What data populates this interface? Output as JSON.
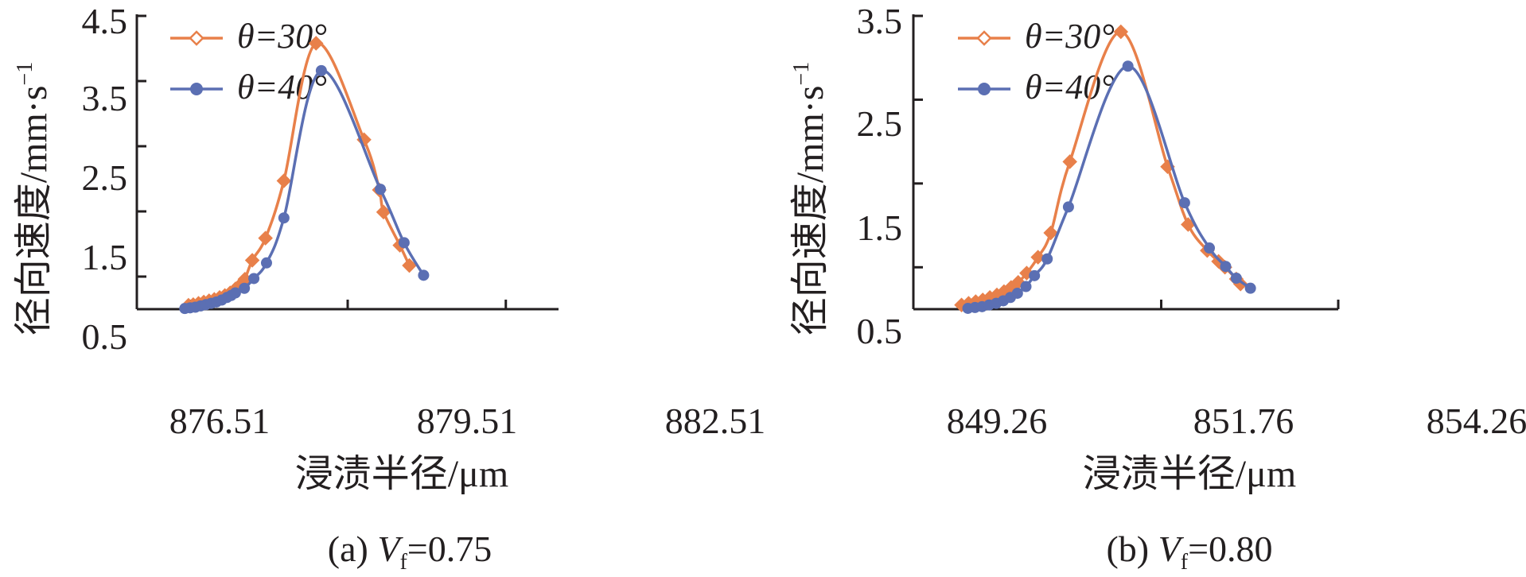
{
  "colors": {
    "theta30": "#e8804a",
    "theta40": "#5b6fb3",
    "axis": "#231f20"
  },
  "legend_labels": {
    "theta30": "θ=30°",
    "theta40": "θ=40°"
  },
  "chart_data": [
    {
      "type": "line",
      "caption": "(a) Vf=0.75",
      "caption_parts": {
        "prefix": "(a) ",
        "var": "V",
        "sub": "f",
        "suffix": "=0.75"
      },
      "xlabel": "浸渍半径/μm",
      "ylabel": "径向速度/mm·s⁻¹",
      "ylabel_parts": {
        "main": "径向速度/mm",
        "dot": "·",
        "s": "s",
        "sup": "−1"
      },
      "xlim": [
        875.51,
        883.51
      ],
      "ylim": [
        0,
        4.5
      ],
      "xticks": [
        "876.51",
        "879.51",
        "882.51"
      ],
      "xtick_values": [
        876.51,
        879.51,
        882.51
      ],
      "yticks": [
        "0.5",
        "1.5",
        "2.5",
        "3.5",
        "4.5"
      ],
      "ytick_values": [
        0.5,
        1.5,
        2.5,
        3.5,
        4.5
      ],
      "legend": "top-left",
      "grid": false,
      "series": [
        {
          "name": "θ=30°",
          "marker": "diamond",
          "points": [
            [
              876.49,
              0.06
            ],
            [
              876.58,
              0.07
            ],
            [
              876.68,
              0.09
            ],
            [
              876.78,
              0.11
            ],
            [
              876.88,
              0.13
            ],
            [
              876.98,
              0.15
            ],
            [
              877.08,
              0.18
            ],
            [
              877.18,
              0.21
            ],
            [
              877.28,
              0.25
            ],
            [
              877.38,
              0.31
            ],
            [
              877.48,
              0.38
            ],
            [
              877.56,
              0.46
            ],
            [
              877.7,
              0.75
            ],
            [
              877.95,
              1.09
            ],
            [
              878.3,
              1.97
            ],
            [
              878.91,
              4.08
            ],
            [
              879.82,
              2.6
            ],
            [
              880.11,
              1.83
            ],
            [
              880.19,
              1.49
            ],
            [
              880.5,
              0.98
            ],
            [
              880.68,
              0.67
            ]
          ]
        },
        {
          "name": "θ=40°",
          "marker": "circle",
          "points": [
            [
              876.42,
              0.01
            ],
            [
              876.52,
              0.02
            ],
            [
              876.62,
              0.03
            ],
            [
              876.72,
              0.05
            ],
            [
              876.82,
              0.07
            ],
            [
              876.92,
              0.09
            ],
            [
              877.02,
              0.11
            ],
            [
              877.12,
              0.14
            ],
            [
              877.22,
              0.18
            ],
            [
              877.3,
              0.21
            ],
            [
              877.38,
              0.25
            ],
            [
              877.55,
              0.32
            ],
            [
              877.73,
              0.47
            ],
            [
              877.97,
              0.71
            ],
            [
              878.3,
              1.4
            ],
            [
              879.01,
              3.66
            ],
            [
              880.13,
              1.84
            ],
            [
              880.58,
              1.02
            ],
            [
              880.95,
              0.52
            ]
          ]
        }
      ]
    },
    {
      "type": "line",
      "caption": "(b) Vf=0.80",
      "caption_parts": {
        "prefix": "(b) ",
        "var": "V",
        "sub": "f",
        "suffix": "=0.80"
      },
      "xlabel": "浸渍半径/μm",
      "ylabel": "径向速度/mm·s⁻¹",
      "ylabel_parts": {
        "main": "径向速度/mm",
        "dot": "·",
        "s": "s",
        "sup": "−1"
      },
      "xlim": [
        848.26,
        854.26
      ],
      "ylim": [
        0,
        3.5
      ],
      "xticks": [
        "849.26",
        "851.76",
        "854.26"
      ],
      "xtick_values": [
        849.26,
        851.76,
        854.26
      ],
      "yticks": [
        "0.5",
        "1.5",
        "2.5",
        "3.5"
      ],
      "ytick_values": [
        0.5,
        1.5,
        2.5,
        3.5
      ],
      "legend": "top-left",
      "grid": false,
      "series": [
        {
          "name": "θ=30°",
          "marker": "diamond",
          "points": [
            [
              848.94,
              0.05
            ],
            [
              849.04,
              0.07
            ],
            [
              849.14,
              0.09
            ],
            [
              849.24,
              0.11
            ],
            [
              849.34,
              0.14
            ],
            [
              849.44,
              0.17
            ],
            [
              849.54,
              0.21
            ],
            [
              849.64,
              0.26
            ],
            [
              849.74,
              0.32
            ],
            [
              849.86,
              0.43
            ],
            [
              850.02,
              0.62
            ],
            [
              850.2,
              0.91
            ],
            [
              850.47,
              1.76
            ],
            [
              851.19,
              3.31
            ],
            [
              851.85,
              1.7
            ],
            [
              852.14,
              1.01
            ],
            [
              852.41,
              0.7
            ],
            [
              852.57,
              0.57
            ],
            [
              852.66,
              0.5
            ],
            [
              852.82,
              0.36
            ],
            [
              852.88,
              0.3
            ]
          ]
        },
        {
          "name": "θ=40°",
          "marker": "circle",
          "points": [
            [
              849.03,
              0.01
            ],
            [
              849.13,
              0.02
            ],
            [
              849.23,
              0.03
            ],
            [
              849.33,
              0.05
            ],
            [
              849.43,
              0.07
            ],
            [
              849.53,
              0.1
            ],
            [
              849.63,
              0.14
            ],
            [
              849.73,
              0.19
            ],
            [
              849.85,
              0.27
            ],
            [
              849.97,
              0.4
            ],
            [
              850.15,
              0.6
            ],
            [
              850.45,
              1.22
            ],
            [
              851.29,
              2.9
            ],
            [
              852.09,
              1.27
            ],
            [
              852.44,
              0.73
            ],
            [
              852.67,
              0.51
            ],
            [
              852.82,
              0.37
            ],
            [
              853.02,
              0.25
            ]
          ]
        }
      ]
    }
  ]
}
